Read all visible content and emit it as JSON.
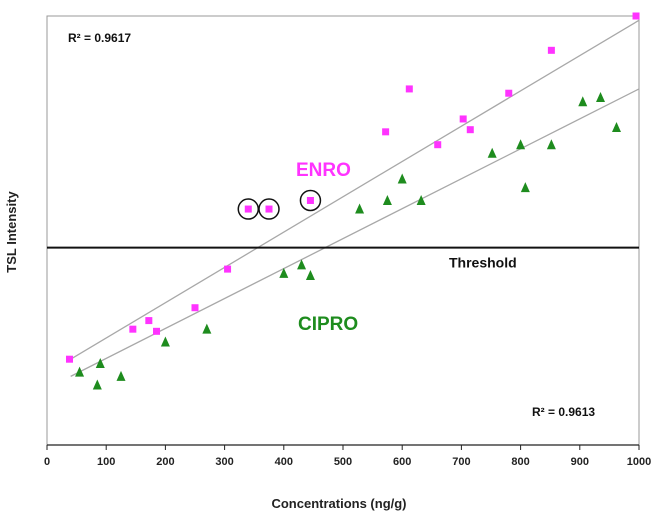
{
  "chart_data": {
    "type": "scatter",
    "title": "",
    "xlabel": "Concentrations (ng/g)",
    "ylabel": "TSL Intensity",
    "xlim": [
      0,
      1000
    ],
    "ylim": [
      0,
      100
    ],
    "x_ticks": [
      "0",
      "100",
      "200",
      "300",
      "400",
      "500",
      "600",
      "700",
      "800",
      "900",
      "1000"
    ],
    "y_ticks_shown": false,
    "grid": false,
    "threshold": {
      "label": "Threshold",
      "y": 46
    },
    "r2_labels": [
      {
        "text": "R² = 0.9617",
        "position": "top-left"
      },
      {
        "text": "R² = 0.9613",
        "position": "bottom-right"
      }
    ],
    "series": [
      {
        "name": "ENRO",
        "marker": "square",
        "color": "#ff33ff",
        "trendline": {
          "x0": 40,
          "y0": 20,
          "x1": 1000,
          "y1": 99
        },
        "points": [
          {
            "x": 38,
            "y": 20
          },
          {
            "x": 145,
            "y": 27
          },
          {
            "x": 172,
            "y": 29
          },
          {
            "x": 185,
            "y": 26.5
          },
          {
            "x": 250,
            "y": 32
          },
          {
            "x": 305,
            "y": 41
          },
          {
            "x": 340,
            "y": 55
          },
          {
            "x": 375,
            "y": 55
          },
          {
            "x": 445,
            "y": 57
          },
          {
            "x": 572,
            "y": 73
          },
          {
            "x": 612,
            "y": 83
          },
          {
            "x": 660,
            "y": 70
          },
          {
            "x": 703,
            "y": 76
          },
          {
            "x": 715,
            "y": 73.5
          },
          {
            "x": 780,
            "y": 82
          },
          {
            "x": 852,
            "y": 92
          },
          {
            "x": 995,
            "y": 100
          }
        ],
        "circled_points": [
          {
            "x": 340,
            "y": 55
          },
          {
            "x": 375,
            "y": 55
          },
          {
            "x": 445,
            "y": 57
          }
        ]
      },
      {
        "name": "CIPRO",
        "marker": "triangle",
        "color": "#1e8c1e",
        "trendline": {
          "x0": 40,
          "y0": 16,
          "x1": 1000,
          "y1": 83
        },
        "points": [
          {
            "x": 55,
            "y": 17
          },
          {
            "x": 85,
            "y": 14
          },
          {
            "x": 90,
            "y": 19
          },
          {
            "x": 125,
            "y": 16
          },
          {
            "x": 200,
            "y": 24
          },
          {
            "x": 270,
            "y": 27
          },
          {
            "x": 400,
            "y": 40
          },
          {
            "x": 430,
            "y": 42
          },
          {
            "x": 445,
            "y": 39.5
          },
          {
            "x": 528,
            "y": 55
          },
          {
            "x": 575,
            "y": 57
          },
          {
            "x": 600,
            "y": 62
          },
          {
            "x": 632,
            "y": 57
          },
          {
            "x": 752,
            "y": 68
          },
          {
            "x": 800,
            "y": 70
          },
          {
            "x": 808,
            "y": 60
          },
          {
            "x": 852,
            "y": 70
          },
          {
            "x": 905,
            "y": 80
          },
          {
            "x": 935,
            "y": 81
          },
          {
            "x": 962,
            "y": 74
          }
        ]
      }
    ]
  }
}
